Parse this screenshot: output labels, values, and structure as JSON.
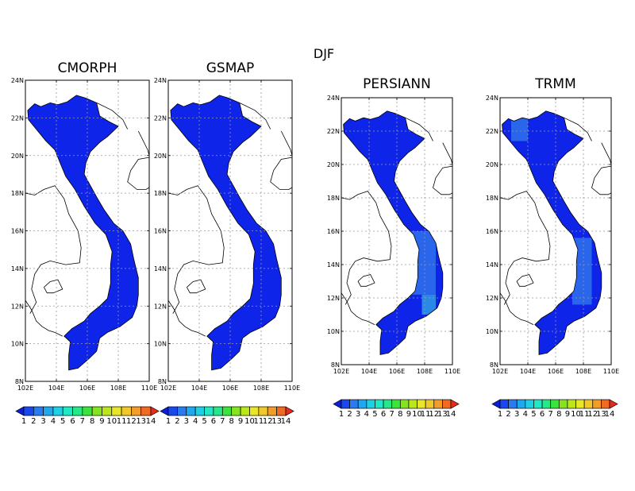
{
  "figure": {
    "title": "DJF"
  },
  "colorbar": {
    "labels": [
      "1",
      "2",
      "3",
      "4",
      "5",
      "6",
      "7",
      "8",
      "9",
      "10",
      "11",
      "12",
      "13",
      "14"
    ],
    "colors": [
      "#0a1fd6",
      "#1a48ee",
      "#2a7bf0",
      "#20a8ee",
      "#1dd0e4",
      "#20e8c4",
      "#26e888",
      "#3be43c",
      "#84e420",
      "#bce61c",
      "#e8e626",
      "#f0c82a",
      "#f29c2a",
      "#f06a24",
      "#e82a1a"
    ]
  },
  "map_colors": {
    "land_deep": "#0e24e8",
    "land_mid": "#1640ee",
    "land_light": "#2a66ec",
    "land_cyan": "#2a88e6",
    "grid": "#9a9a9a",
    "coast": "#000000"
  },
  "panels": [
    {
      "title": "CMORPH",
      "lon_range": [
        102,
        110
      ],
      "lat_range": [
        8,
        24
      ],
      "xticks": [
        "102E",
        "104E",
        "106E",
        "108E",
        "110E"
      ],
      "yticks": [
        "8N",
        "10N",
        "12N",
        "14N",
        "16N",
        "18N",
        "20N",
        "22N",
        "24N"
      ],
      "patches": []
    },
    {
      "title": "GSMAP",
      "lon_range": [
        102,
        110
      ],
      "lat_range": [
        8,
        24
      ],
      "xticks": [
        "102E",
        "104E",
        "106E",
        "108E",
        "110E"
      ],
      "yticks": [
        "8N",
        "10N",
        "12N",
        "14N",
        "16N",
        "18N",
        "20N",
        "22N",
        "24N"
      ],
      "patches": []
    },
    {
      "title": "PERSIANN",
      "lon_range": [
        102,
        110
      ],
      "lat_range": [
        8,
        24
      ],
      "xticks": [
        "102E",
        "104E",
        "106E",
        "108E",
        "110E"
      ],
      "yticks": [
        "8N",
        "10N",
        "12N",
        "14N",
        "16N",
        "18N",
        "20N",
        "22N",
        "24N"
      ],
      "patches": [
        {
          "lon": [
            106.6,
            108.8
          ],
          "lat": [
            12.2,
            16.0
          ],
          "level": "light"
        },
        {
          "lon": [
            107.8,
            108.8
          ],
          "lat": [
            11.0,
            12.2
          ],
          "level": "cyan"
        }
      ]
    },
    {
      "title": "TRMM",
      "lon_range": [
        102,
        110
      ],
      "lat_range": [
        8,
        24
      ],
      "xticks": [
        "102E",
        "104E",
        "106E",
        "108E",
        "110E"
      ],
      "yticks": [
        "8N",
        "10N",
        "12N",
        "14N",
        "16N",
        "18N",
        "20N",
        "22N",
        "24N"
      ],
      "patches": [
        {
          "lon": [
            107.2,
            108.6
          ],
          "lat": [
            11.6,
            15.6
          ],
          "level": "light"
        },
        {
          "lon": [
            102.8,
            104.0
          ],
          "lat": [
            21.4,
            22.8
          ],
          "level": "light"
        }
      ]
    }
  ]
}
